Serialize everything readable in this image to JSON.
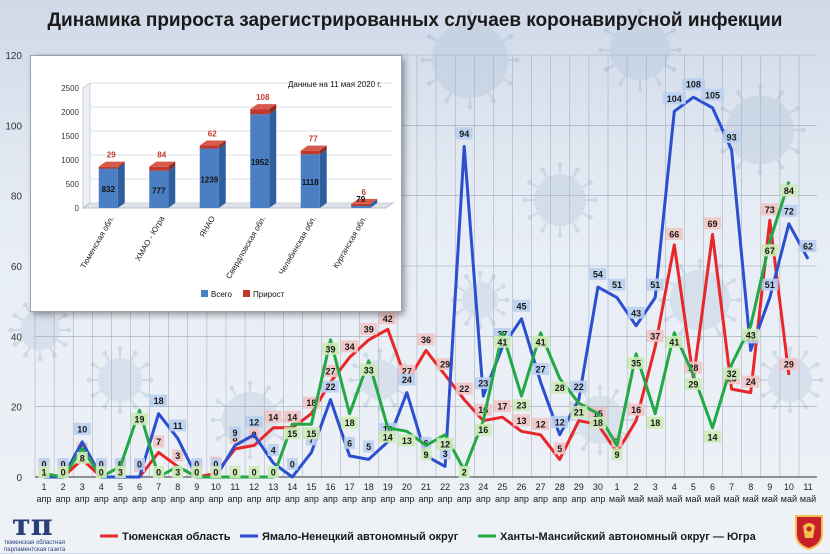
{
  "title": "Динамика прироста зарегистрированных случаев коронавирусной инфекции",
  "colors": {
    "tyumen": "#e8272a",
    "yanao": "#2a4fcf",
    "khmao": "#22a845",
    "bar_total": "#4a7fc4",
    "bar_growth": "#c0392b"
  },
  "logo": {
    "letters": "тп",
    "caption": "тюменская областная парламентская газета"
  },
  "chart_data": [
    {
      "type": "line",
      "ylim": [
        0,
        120
      ],
      "yticks": [
        0,
        20,
        40,
        60,
        80,
        100,
        120
      ],
      "x": [
        "1",
        "2",
        "3",
        "4",
        "5",
        "6",
        "7",
        "8",
        "9",
        "10",
        "11",
        "12",
        "13",
        "14",
        "15",
        "16",
        "17",
        "18",
        "19",
        "20",
        "21",
        "22",
        "23",
        "24",
        "25",
        "26",
        "27",
        "28",
        "29",
        "30",
        "1",
        "2",
        "3",
        "4",
        "5",
        "6",
        "7",
        "8",
        "9",
        "10",
        "11"
      ],
      "x_month": [
        "апр",
        "апр",
        "апр",
        "апр",
        "апр",
        "апр",
        "апр",
        "апр",
        "апр",
        "апр",
        "апр",
        "апр",
        "апр",
        "апр",
        "апр",
        "апр",
        "апр",
        "апр",
        "апр",
        "апр",
        "апр",
        "апр",
        "апр",
        "апр",
        "апр",
        "апр",
        "апр",
        "апр",
        "апр",
        "апр",
        "май",
        "май",
        "май",
        "май",
        "май",
        "май",
        "май",
        "май",
        "май",
        "май",
        "май"
      ],
      "series": [
        {
          "name": "Тюменская область",
          "key": "tyumen",
          "values": [
            0,
            0,
            5,
            0,
            0,
            0,
            7,
            3,
            0,
            1,
            8,
            9,
            14,
            14,
            18,
            27,
            34,
            39,
            42,
            27,
            36,
            29,
            22,
            16,
            17,
            13,
            12,
            5,
            16,
            15,
            7,
            16,
            37,
            66,
            28,
            69,
            25,
            24,
            73,
            29,
            null
          ]
        },
        {
          "name": "Ямало-Ненецкий автономный округ",
          "key": "yanao",
          "values": [
            0,
            0,
            10,
            0,
            0,
            0,
            18,
            11,
            0,
            0,
            9,
            12,
            4,
            0,
            7,
            22,
            6,
            5,
            10,
            24,
            6,
            3,
            94,
            23,
            37,
            45,
            27,
            12,
            22,
            54,
            51,
            43,
            51,
            104,
            108,
            105,
            93,
            36,
            51,
            72,
            62
          ]
        },
        {
          "name": "Ханты-Мансийский автономный округ — Югра",
          "key": "khmao",
          "values": [
            1,
            0,
            8,
            0,
            3,
            19,
            0,
            3,
            0,
            0,
            0,
            0,
            0,
            15,
            15,
            39,
            18,
            33,
            14,
            13,
            9,
            12,
            2,
            16,
            41,
            23,
            41,
            28,
            21,
            18,
            9,
            35,
            18,
            41,
            29,
            14,
            32,
            43,
            67,
            84,
            null
          ]
        }
      ]
    },
    {
      "type": "bar",
      "annotation": "Данные на 11 мая 2020 г.",
      "categories": [
        "Тюменская обл.",
        "ХМАО - Югра",
        "ЯНАО",
        "Свердловская обл.",
        "Челябинская обл.",
        "Курганская обл."
      ],
      "ylim": [
        0,
        2500
      ],
      "yticks": [
        0,
        500,
        1000,
        1500,
        2000,
        2500
      ],
      "series": [
        {
          "name": "Всего",
          "values": [
            832,
            777,
            1239,
            1952,
            1118,
            79
          ]
        },
        {
          "name": "Прирост",
          "values": [
            29,
            84,
            62,
            108,
            77,
            6
          ]
        }
      ]
    }
  ]
}
